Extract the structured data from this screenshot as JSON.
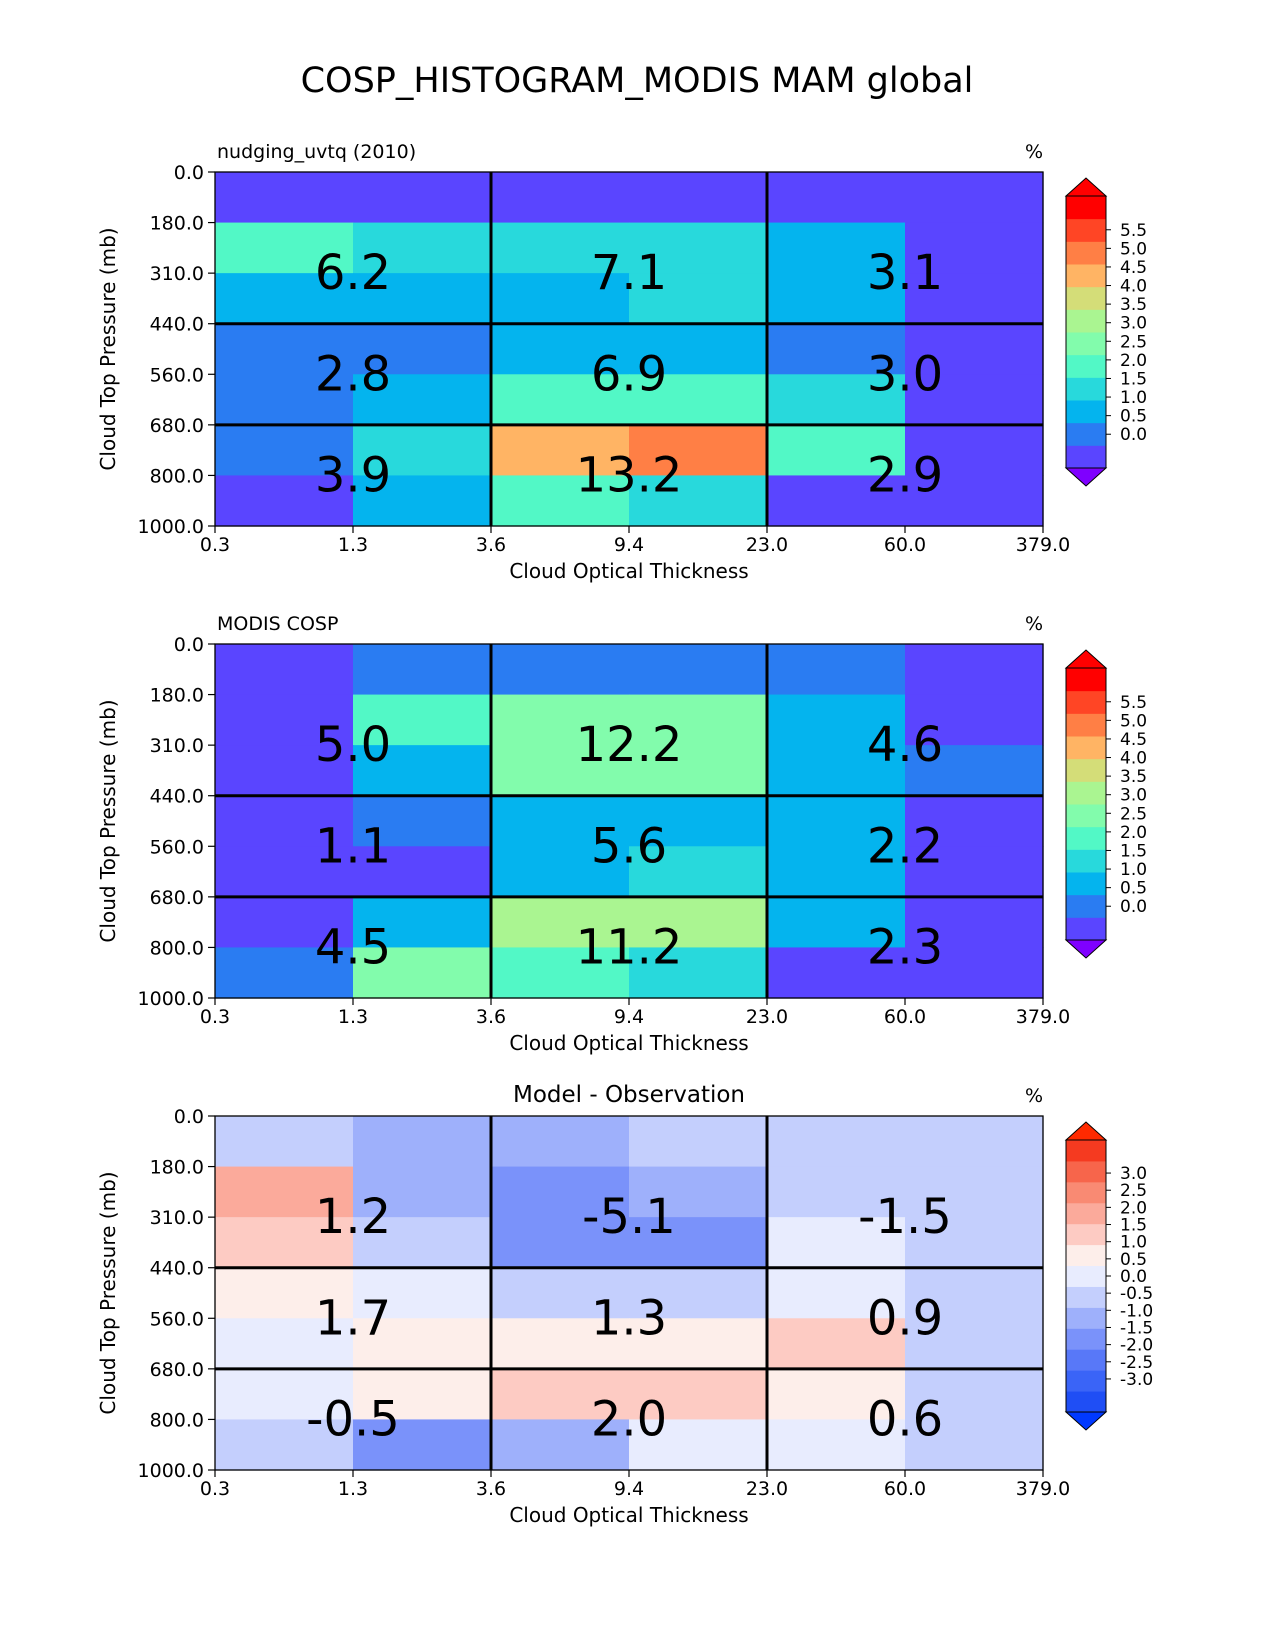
{
  "figure_title": "COSP_HISTOGRAM_MODIS MAM global",
  "chart_data": [
    {
      "type": "heatmap",
      "title_left": "nudging_uvtq (2010)",
      "title_center": "",
      "units": "%",
      "xlabel": "Cloud Optical Thickness",
      "ylabel": "Cloud Top Pressure (mb)",
      "x_ticks": [
        "0.3",
        "1.3",
        "3.6",
        "9.4",
        "23.0",
        "60.0",
        "379.0"
      ],
      "y_ticks": [
        "0.0",
        "180.0",
        "310.0",
        "440.0",
        "560.0",
        "680.0",
        "800.0",
        "1000.0"
      ],
      "cells": [
        [
          0.1,
          0.1,
          0.1,
          0.1,
          0.1,
          0.1
        ],
        [
          2.4,
          1.9,
          1.9,
          1.9,
          1.4,
          0.1
        ],
        [
          1.4,
          1.4,
          1.4,
          1.9,
          1.4,
          0.1
        ],
        [
          0.9,
          0.9,
          1.4,
          1.4,
          0.9,
          0.1
        ],
        [
          0.9,
          1.4,
          2.4,
          2.4,
          1.9,
          0.1
        ],
        [
          0.9,
          1.9,
          4.2,
          4.7,
          2.4,
          0.1
        ],
        [
          0.1,
          1.4,
          2.4,
          1.9,
          0.1,
          0.1
        ]
      ],
      "box_sums": [
        [
          "6.2",
          "7.1",
          "3.1"
        ],
        [
          "2.8",
          "6.9",
          "3.0"
        ],
        [
          "3.9",
          "13.2",
          "2.9"
        ]
      ],
      "colorbar": {
        "levels": [
          "0.0",
          "0.5",
          "1.0",
          "1.5",
          "2.0",
          "2.5",
          "3.0",
          "3.5",
          "4.0",
          "4.5",
          "5.0",
          "5.5"
        ],
        "min": 0,
        "step": 0.5,
        "colors": [
          "#5a45ff",
          "#2a7cf2",
          "#04b4ee",
          "#28d9dc",
          "#52f8c6",
          "#82fcac",
          "#aaf591",
          "#d4dd78",
          "#ffb464",
          "#ff7f45",
          "#ff4525",
          "#ff0000"
        ],
        "under_color": "#7f00ff",
        "over_color": "#ff0000"
      }
    },
    {
      "type": "heatmap",
      "title_left": "MODIS COSP",
      "title_center": "",
      "units": "%",
      "xlabel": "Cloud Optical Thickness",
      "ylabel": "Cloud Top Pressure (mb)",
      "x_ticks": [
        "0.3",
        "1.3",
        "3.6",
        "9.4",
        "23.0",
        "60.0",
        "379.0"
      ],
      "y_ticks": [
        "0.0",
        "180.0",
        "310.0",
        "440.0",
        "560.0",
        "680.0",
        "800.0",
        "1000.0"
      ],
      "cells": [
        [
          0.1,
          0.9,
          0.9,
          0.9,
          0.9,
          0.1
        ],
        [
          0.1,
          2.4,
          2.8,
          2.8,
          1.4,
          0.1
        ],
        [
          0.1,
          1.4,
          2.8,
          2.8,
          1.4,
          0.9
        ],
        [
          0.1,
          0.9,
          1.4,
          1.4,
          1.4,
          0.1
        ],
        [
          0.1,
          0.1,
          1.4,
          1.9,
          1.4,
          0.1
        ],
        [
          0.1,
          1.4,
          3.2,
          3.2,
          1.4,
          0.1
        ],
        [
          0.9,
          2.8,
          2.4,
          1.9,
          0.1,
          0.1
        ]
      ],
      "box_sums": [
        [
          "5.0",
          "12.2",
          "4.6"
        ],
        [
          "1.1",
          "5.6",
          "2.2"
        ],
        [
          "4.5",
          "11.2",
          "2.3"
        ]
      ],
      "colorbar": {
        "levels": [
          "0.0",
          "0.5",
          "1.0",
          "1.5",
          "2.0",
          "2.5",
          "3.0",
          "3.5",
          "4.0",
          "4.5",
          "5.0",
          "5.5"
        ],
        "min": 0,
        "step": 0.5,
        "colors": [
          "#5a45ff",
          "#2a7cf2",
          "#04b4ee",
          "#28d9dc",
          "#52f8c6",
          "#82fcac",
          "#aaf591",
          "#d4dd78",
          "#ffb464",
          "#ff7f45",
          "#ff4525",
          "#ff0000"
        ],
        "under_color": "#7f00ff",
        "over_color": "#ff0000"
      }
    },
    {
      "type": "heatmap",
      "title_left": "",
      "title_center": "Model - Observation",
      "units": "%",
      "xlabel": "Cloud Optical Thickness",
      "ylabel": "Cloud Top Pressure (mb)",
      "x_ticks": [
        "0.3",
        "1.3",
        "3.6",
        "9.4",
        "23.0",
        "60.0",
        "379.0"
      ],
      "y_ticks": [
        "0.0",
        "180.0",
        "310.0",
        "440.0",
        "560.0",
        "680.0",
        "800.0",
        "1000.0"
      ],
      "cells": [
        [
          -0.1,
          -0.7,
          -0.7,
          -0.1,
          -0.1,
          -0.1
        ],
        [
          1.7,
          -0.7,
          -1.3,
          -0.7,
          -0.1,
          -0.1
        ],
        [
          1.3,
          -0.1,
          -1.3,
          -1.3,
          0.2,
          -0.1
        ],
        [
          0.7,
          0.2,
          -0.1,
          -0.1,
          0.2,
          -0.1
        ],
        [
          0.2,
          0.7,
          0.7,
          0.7,
          1.3,
          -0.1
        ],
        [
          0.2,
          0.7,
          1.3,
          1.3,
          0.7,
          -0.1
        ],
        [
          -0.1,
          -1.3,
          -0.7,
          0.2,
          0.2,
          -0.1
        ]
      ],
      "box_sums": [
        [
          "1.2",
          "-5.1",
          "-1.5"
        ],
        [
          "1.7",
          "1.3",
          "0.9"
        ],
        [
          "-0.5",
          "2.0",
          "0.6"
        ]
      ],
      "colorbar": {
        "levels": [
          "-3.0",
          "-2.5",
          "-2.0",
          "-1.5",
          "-1.0",
          "-0.5",
          "0.0",
          "0.5",
          "1.0",
          "1.5",
          "2.0",
          "2.5",
          "3.0"
        ],
        "min": -3.0,
        "step": 0.5,
        "colors": [
          "#1f4ef5",
          "#3a64f7",
          "#5878f8",
          "#7a92fa",
          "#9eb0fb",
          "#c4cffd",
          "#e8ecfe",
          "#fdeeea",
          "#fdcbc3",
          "#fbaa9b",
          "#f98a73",
          "#f7654b",
          "#f53a20"
        ],
        "under_color": "#0039ff",
        "over_color": "#ff2a00"
      }
    }
  ]
}
